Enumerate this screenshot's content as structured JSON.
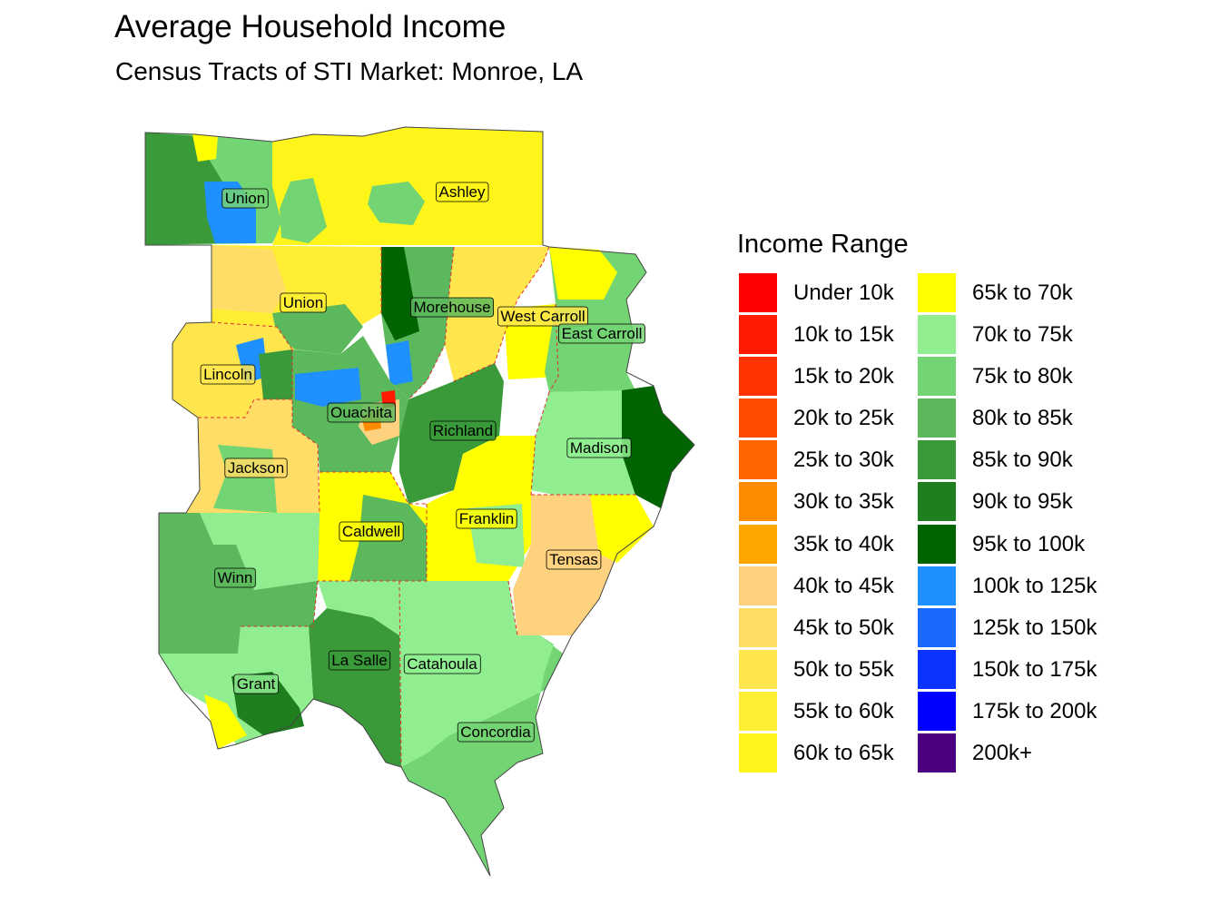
{
  "title": "Average Household Income",
  "subtitle": "Census Tracts of STI Market: Monroe, LA",
  "legend": {
    "title": "Income Range",
    "items": [
      {
        "label": "Under 10k",
        "color": "#FF0000"
      },
      {
        "label": "10k to 15k",
        "color": "#FF1A00"
      },
      {
        "label": "15k to 20k",
        "color": "#FF3300"
      },
      {
        "label": "20k to 25k",
        "color": "#FF4D00"
      },
      {
        "label": "25k to 30k",
        "color": "#FF6600"
      },
      {
        "label": "30k to 35k",
        "color": "#FF8C00"
      },
      {
        "label": "35k to 40k",
        "color": "#FFA500"
      },
      {
        "label": "40k to 45k",
        "color": "#FFD27F"
      },
      {
        "label": "45k to 50k",
        "color": "#FFDD66"
      },
      {
        "label": "50k to 55k",
        "color": "#FFE64D"
      },
      {
        "label": "55k to 60k",
        "color": "#FFEE33"
      },
      {
        "label": "60k to 65k",
        "color": "#FFF51A"
      },
      {
        "label": "65k to 70k",
        "color": "#FFFF00"
      },
      {
        "label": "70k to 75k",
        "color": "#90EE90"
      },
      {
        "label": "75k to 80k",
        "color": "#73D473"
      },
      {
        "label": "80k to 85k",
        "color": "#5CB85C"
      },
      {
        "label": "85k to 90k",
        "color": "#3A9A3A"
      },
      {
        "label": "90k to 95k",
        "color": "#1F7F1F"
      },
      {
        "label": "95k to 100k",
        "color": "#006400"
      },
      {
        "label": "100k to 125k",
        "color": "#1E90FF"
      },
      {
        "label": "125k to 150k",
        "color": "#1A6AFF"
      },
      {
        "label": "150k to 175k",
        "color": "#0A33FF"
      },
      {
        "label": "175k to 200k",
        "color": "#0000FF"
      },
      {
        "label": "200k+",
        "color": "#4B0082"
      }
    ]
  },
  "parishes": [
    {
      "name": "Union",
      "fill": "#73D473"
    },
    {
      "name": "Ashley",
      "fill": "#FFF51A"
    },
    {
      "name": "Union",
      "fill": "#FFEE33"
    },
    {
      "name": "Morehouse",
      "fill": "#5CB85C"
    },
    {
      "name": "West Carroll",
      "fill": "#FFE64D"
    },
    {
      "name": "East Carroll",
      "fill": "#73D473"
    },
    {
      "name": "Lincoln",
      "fill": "#FFE64D"
    },
    {
      "name": "Ouachita",
      "fill": "#5CB85C"
    },
    {
      "name": "Richland",
      "fill": "#3A9A3A"
    },
    {
      "name": "Madison",
      "fill": "#90EE90"
    },
    {
      "name": "Jackson",
      "fill": "#FFDD66"
    },
    {
      "name": "Caldwell",
      "fill": "#FFFF00"
    },
    {
      "name": "Franklin",
      "fill": "#FFFF00"
    },
    {
      "name": "Tensas",
      "fill": "#FFD27F"
    },
    {
      "name": "Winn",
      "fill": "#5CB85C"
    },
    {
      "name": "La Salle",
      "fill": "#3A9A3A"
    },
    {
      "name": "Catahoula",
      "fill": "#90EE90"
    },
    {
      "name": "Grant",
      "fill": "#90EE90"
    },
    {
      "name": "Concordia",
      "fill": "#73D473"
    }
  ]
}
